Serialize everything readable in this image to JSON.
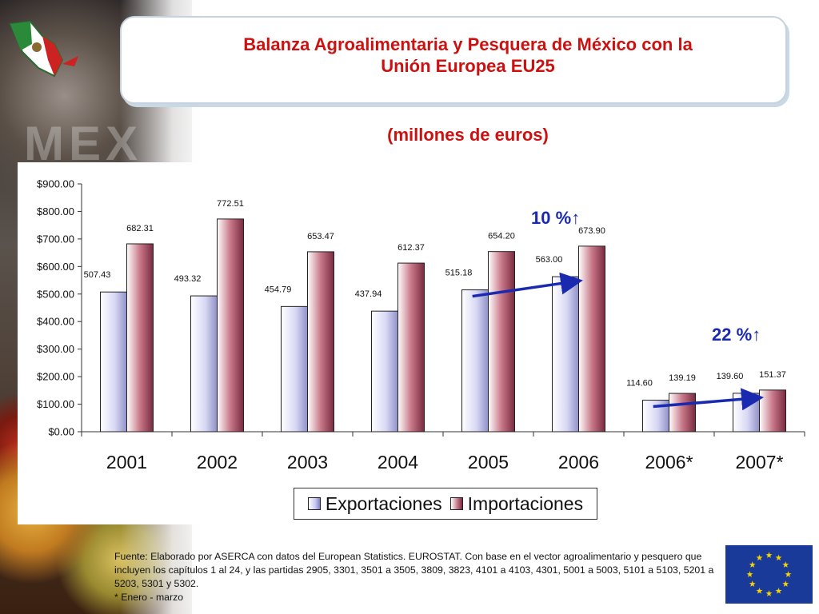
{
  "header": {
    "title_line1": "Balanza Agroalimentaria y Pesquera de México con la",
    "title_line2": "Unión Europea EU25",
    "subtitle": "(millones de euros)",
    "watermark": "MEX"
  },
  "chart_data": {
    "type": "bar",
    "title": "Balanza Agroalimentaria y Pesquera de México con la Unión Europea EU25",
    "subtitle": "(millones de euros)",
    "categories": [
      "2001",
      "2002",
      "2003",
      "2004",
      "2005",
      "2006",
      "2006*",
      "2007*"
    ],
    "series": [
      {
        "name": "Exportaciones",
        "values": [
          507.43,
          493.32,
          454.79,
          437.94,
          515.18,
          563.0,
          114.6,
          139.6
        ],
        "labels": [
          "507.43",
          "493.32",
          "454.79",
          "437.94",
          "515.18",
          "563.00",
          "114.60",
          "139.60"
        ]
      },
      {
        "name": "Importaciones",
        "values": [
          682.31,
          772.51,
          653.47,
          612.37,
          654.2,
          673.9,
          139.19,
          151.37
        ],
        "labels": [
          "682.31",
          "772.51",
          "653.47",
          "612.37",
          "654.20",
          "673.90",
          "139.19",
          "151.37"
        ]
      }
    ],
    "ylim": [
      0,
      900
    ],
    "yticks": [
      "$0.00",
      "$100.00",
      "$200.00",
      "$300.00",
      "$400.00",
      "$500.00",
      "$600.00",
      "$700.00",
      "$800.00",
      "$900.00"
    ],
    "legend_position": "bottom",
    "annotations": [
      {
        "text": "10 %↑",
        "from_category": "2005",
        "to_category": "2006"
      },
      {
        "text": "22 %↑",
        "from_category": "2006*",
        "to_category": "2007*"
      }
    ],
    "colors": {
      "exports": "#c8c8f0",
      "imports": "#a84860",
      "arrow": "#1a2ab0",
      "annotation": "#1a2ab0"
    }
  },
  "footer": {
    "source_line": "Fuente: Elaborado por ASERCA con datos del European Statistics. EUROSTAT. Con base en el vector agroalimentario y pesquero que incluyen los capítulos 1 al 24, y las partidas 2905, 3301, 3501 a 3505, 3809, 3823, 4101 a 4103, 4301, 5001 a 5003, 5101 a 5103, 5201 a 5203, 5301 y 5302.",
    "note": "* Enero - marzo"
  }
}
